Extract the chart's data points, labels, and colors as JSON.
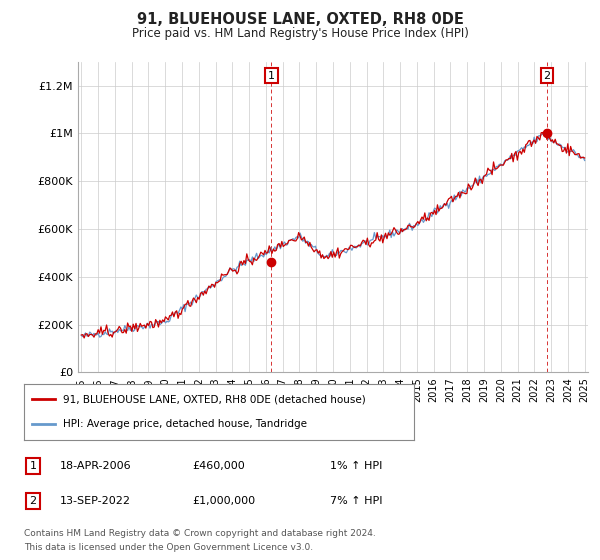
{
  "title": "91, BLUEHOUSE LANE, OXTED, RH8 0DE",
  "subtitle": "Price paid vs. HM Land Registry's House Price Index (HPI)",
  "sale1_date": "18-APR-2006",
  "sale1_price": 460000,
  "sale1_price_str": "£460,000",
  "sale1_hpi": "1% ↑ HPI",
  "sale2_date": "13-SEP-2022",
  "sale2_price": 1000000,
  "sale2_price_str": "£1,000,000",
  "sale2_hpi": "7% ↑ HPI",
  "legend_line1": "91, BLUEHOUSE LANE, OXTED, RH8 0DE (detached house)",
  "legend_line2": "HPI: Average price, detached house, Tandridge",
  "footer_line1": "Contains HM Land Registry data © Crown copyright and database right 2024.",
  "footer_line2": "This data is licensed under the Open Government Licence v3.0.",
  "line_color": "#cc0000",
  "hpi_color": "#6699cc",
  "sale_marker_color": "#cc0000",
  "annotation_box_color": "#cc0000",
  "grid_color": "#cccccc",
  "background_color": "#ffffff",
  "ylim": [
    0,
    1300000
  ],
  "yticks": [
    0,
    200000,
    400000,
    600000,
    800000,
    1000000,
    1200000
  ],
  "ytick_labels": [
    "£0",
    "£200K",
    "£400K",
    "£600K",
    "£800K",
    "£1M",
    "£1.2M"
  ],
  "xstart_year": 1995,
  "xend_year": 2025
}
